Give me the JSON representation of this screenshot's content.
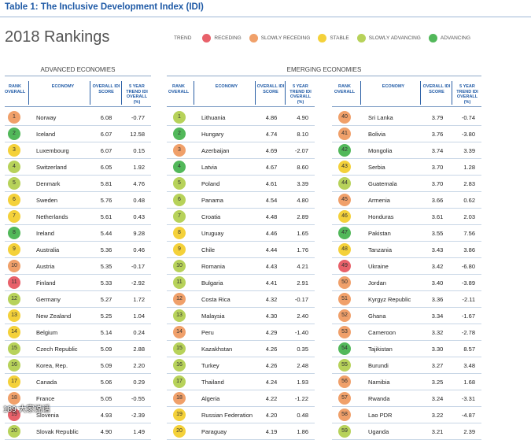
{
  "table_title": "Table 1: The Inclusive Development Index (IDI)",
  "heading": "2018 Rankings",
  "legend": {
    "title": "TREND",
    "items": [
      {
        "label": "RECEDING",
        "color": "#e8616a"
      },
      {
        "label": "SLOWLY RECEDING",
        "color": "#f0a06a"
      },
      {
        "label": "STABLE",
        "color": "#f4d13a"
      },
      {
        "label": "SLOWLY ADVANCING",
        "color": "#b7d25a"
      },
      {
        "label": "ADVANCING",
        "color": "#52b85a"
      }
    ]
  },
  "headers": {
    "rank": "RANK OVERALL",
    "economy": "ECONOMY",
    "score": "OVERALL IDI SCORE",
    "trend": "5 YEAR TREND IDI OVERALL (%)"
  },
  "advanced": {
    "title": "ADVANCED ECONOMIES",
    "rows": [
      {
        "rank": "1",
        "economy": "Norway",
        "score": "6.08",
        "trend": "-0.77",
        "color": "#f0a06a"
      },
      {
        "rank": "2",
        "economy": "Iceland",
        "score": "6.07",
        "trend": "12.58",
        "color": "#52b85a"
      },
      {
        "rank": "3",
        "economy": "Luxembourg",
        "score": "6.07",
        "trend": "0.15",
        "color": "#f4d13a"
      },
      {
        "rank": "4",
        "economy": "Switzerland",
        "score": "6.05",
        "trend": "1.92",
        "color": "#b7d25a"
      },
      {
        "rank": "5",
        "economy": "Denmark",
        "score": "5.81",
        "trend": "4.76",
        "color": "#b7d25a"
      },
      {
        "rank": "6",
        "economy": "Sweden",
        "score": "5.76",
        "trend": "0.48",
        "color": "#f4d13a"
      },
      {
        "rank": "7",
        "economy": "Netherlands",
        "score": "5.61",
        "trend": "0.43",
        "color": "#f4d13a"
      },
      {
        "rank": "8",
        "economy": "Ireland",
        "score": "5.44",
        "trend": "9.28",
        "color": "#52b85a"
      },
      {
        "rank": "9",
        "economy": "Australia",
        "score": "5.36",
        "trend": "0.46",
        "color": "#f4d13a"
      },
      {
        "rank": "10",
        "economy": "Austria",
        "score": "5.35",
        "trend": "-0.17",
        "color": "#f0a06a"
      },
      {
        "rank": "11",
        "economy": "Finland",
        "score": "5.33",
        "trend": "-2.92",
        "color": "#e8616a"
      },
      {
        "rank": "12",
        "economy": "Germany",
        "score": "5.27",
        "trend": "1.72",
        "color": "#b7d25a"
      },
      {
        "rank": "13",
        "economy": "New Zealand",
        "score": "5.25",
        "trend": "1.04",
        "color": "#f4d13a"
      },
      {
        "rank": "14",
        "economy": "Belgium",
        "score": "5.14",
        "trend": "0.24",
        "color": "#f4d13a"
      },
      {
        "rank": "15",
        "economy": "Czech Republic",
        "score": "5.09",
        "trend": "2.88",
        "color": "#b7d25a"
      },
      {
        "rank": "16",
        "economy": "Korea, Rep.",
        "score": "5.09",
        "trend": "2.20",
        "color": "#b7d25a"
      },
      {
        "rank": "17",
        "economy": "Canada",
        "score": "5.06",
        "trend": "0.29",
        "color": "#f4d13a"
      },
      {
        "rank": "18",
        "economy": "France",
        "score": "5.05",
        "trend": "-0.55",
        "color": "#f0a06a"
      },
      {
        "rank": "19",
        "economy": "Slovenia",
        "score": "4.93",
        "trend": "-2.39",
        "color": "#e8616a"
      },
      {
        "rank": "20",
        "economy": "Slovak Republic",
        "score": "4.90",
        "trend": "1.49",
        "color": "#b7d25a"
      }
    ]
  },
  "emerging": {
    "title": "EMERGING ECONOMIES",
    "left_rows": [
      {
        "rank": "1",
        "economy": "Lithuania",
        "score": "4.86",
        "trend": "4.90",
        "color": "#b7d25a"
      },
      {
        "rank": "2",
        "economy": "Hungary",
        "score": "4.74",
        "trend": "8.10",
        "color": "#52b85a"
      },
      {
        "rank": "3",
        "economy": "Azerbaijan",
        "score": "4.69",
        "trend": "-2.07",
        "color": "#f0a06a"
      },
      {
        "rank": "4",
        "economy": "Latvia",
        "score": "4.67",
        "trend": "8.60",
        "color": "#52b85a"
      },
      {
        "rank": "5",
        "economy": "Poland",
        "score": "4.61",
        "trend": "3.39",
        "color": "#b7d25a"
      },
      {
        "rank": "6",
        "economy": "Panama",
        "score": "4.54",
        "trend": "4.80",
        "color": "#b7d25a"
      },
      {
        "rank": "7",
        "economy": "Croatia",
        "score": "4.48",
        "trend": "2.89",
        "color": "#b7d25a"
      },
      {
        "rank": "8",
        "economy": "Uruguay",
        "score": "4.46",
        "trend": "1.65",
        "color": "#f4d13a"
      },
      {
        "rank": "9",
        "economy": "Chile",
        "score": "4.44",
        "trend": "1.76",
        "color": "#f4d13a"
      },
      {
        "rank": "10",
        "economy": "Romania",
        "score": "4.43",
        "trend": "4.21",
        "color": "#b7d25a"
      },
      {
        "rank": "11",
        "economy": "Bulgaria",
        "score": "4.41",
        "trend": "2.91",
        "color": "#b7d25a"
      },
      {
        "rank": "12",
        "economy": "Costa Rica",
        "score": "4.32",
        "trend": "-0.17",
        "color": "#f0a06a"
      },
      {
        "rank": "13",
        "economy": "Malaysia",
        "score": "4.30",
        "trend": "2.40",
        "color": "#b7d25a"
      },
      {
        "rank": "14",
        "economy": "Peru",
        "score": "4.29",
        "trend": "-1.40",
        "color": "#f0a06a"
      },
      {
        "rank": "15",
        "economy": "Kazakhstan",
        "score": "4.26",
        "trend": "0.35",
        "color": "#b7d25a"
      },
      {
        "rank": "16",
        "economy": "Turkey",
        "score": "4.26",
        "trend": "2.48",
        "color": "#b7d25a"
      },
      {
        "rank": "17",
        "economy": "Thailand",
        "score": "4.24",
        "trend": "1.93",
        "color": "#b7d25a"
      },
      {
        "rank": "18",
        "economy": "Algeria",
        "score": "4.22",
        "trend": "-1.22",
        "color": "#f0a06a"
      },
      {
        "rank": "19",
        "economy": "Russian Federation",
        "score": "4.20",
        "trend": "0.48",
        "color": "#f4d13a"
      },
      {
        "rank": "20",
        "economy": "Paraguay",
        "score": "4.19",
        "trend": "1.86",
        "color": "#f4d13a"
      }
    ],
    "right_rows": [
      {
        "rank": "40",
        "economy": "Sri Lanka",
        "score": "3.79",
        "trend": "-0.74",
        "color": "#f0a06a"
      },
      {
        "rank": "41",
        "economy": "Bolivia",
        "score": "3.76",
        "trend": "-3.80",
        "color": "#f0a06a"
      },
      {
        "rank": "42",
        "economy": "Mongolia",
        "score": "3.74",
        "trend": "3.39",
        "color": "#52b85a"
      },
      {
        "rank": "43",
        "economy": "Serbia",
        "score": "3.70",
        "trend": "1.28",
        "color": "#f4d13a"
      },
      {
        "rank": "44",
        "economy": "Guatemala",
        "score": "3.70",
        "trend": "2.83",
        "color": "#b7d25a"
      },
      {
        "rank": "45",
        "economy": "Armenia",
        "score": "3.66",
        "trend": "0.62",
        "color": "#f0a06a"
      },
      {
        "rank": "46",
        "economy": "Honduras",
        "score": "3.61",
        "trend": "2.03",
        "color": "#f4d13a"
      },
      {
        "rank": "47",
        "economy": "Pakistan",
        "score": "3.55",
        "trend": "7.56",
        "color": "#52b85a"
      },
      {
        "rank": "48",
        "economy": "Tanzania",
        "score": "3.43",
        "trend": "3.86",
        "color": "#f4d13a"
      },
      {
        "rank": "49",
        "economy": "Ukraine",
        "score": "3.42",
        "trend": "-6.80",
        "color": "#e8616a"
      },
      {
        "rank": "50",
        "economy": "Jordan",
        "score": "3.40",
        "trend": "-3.89",
        "color": "#f0a06a"
      },
      {
        "rank": "51",
        "economy": "Kyrgyz Republic",
        "score": "3.36",
        "trend": "-2.11",
        "color": "#f0a06a"
      },
      {
        "rank": "52",
        "economy": "Ghana",
        "score": "3.34",
        "trend": "-1.67",
        "color": "#f0a06a"
      },
      {
        "rank": "53",
        "economy": "Cameroon",
        "score": "3.32",
        "trend": "-2.78",
        "color": "#f0a06a"
      },
      {
        "rank": "54",
        "economy": "Tajikistan",
        "score": "3.30",
        "trend": "8.57",
        "color": "#52b85a"
      },
      {
        "rank": "55",
        "economy": "Burundi",
        "score": "3.27",
        "trend": "3.48",
        "color": "#b7d25a"
      },
      {
        "rank": "56",
        "economy": "Namibia",
        "score": "3.25",
        "trend": "1.68",
        "color": "#f0a06a"
      },
      {
        "rank": "57",
        "economy": "Rwanda",
        "score": "3.24",
        "trend": "-3.31",
        "color": "#f0a06a"
      },
      {
        "rank": "58",
        "economy": "Lao PDR",
        "score": "3.22",
        "trend": "-4.87",
        "color": "#f0a06a"
      },
      {
        "rank": "59",
        "economy": "Uganda",
        "score": "3.21",
        "trend": "2.39",
        "color": "#b7d25a"
      }
    ]
  },
  "watermark": "189 大家说话"
}
